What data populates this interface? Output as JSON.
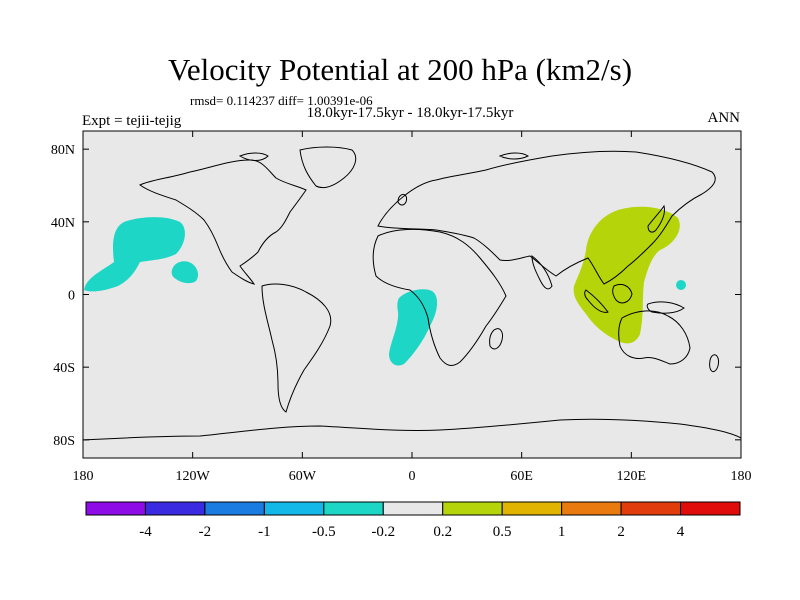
{
  "title": "Velocity Potential at 200 hPa (km2/s)",
  "stats": "rmsd= 0.114237 diff= 1.00391e-06",
  "subtitle": "18.0kyr-17.5kyr - 18.0kyr-17.5kyr",
  "left_string": "Expt = tejii-tejig",
  "right_string": "ANN",
  "map": {
    "lon_range": [
      -180,
      180
    ],
    "lat_range": [
      -90,
      90
    ],
    "lon_ticks": [
      {
        "value": -180,
        "label": "180"
      },
      {
        "value": -120,
        "label": "120W"
      },
      {
        "value": -60,
        "label": "60W"
      },
      {
        "value": 0,
        "label": "0"
      },
      {
        "value": 60,
        "label": "60E"
      },
      {
        "value": 120,
        "label": "120E"
      },
      {
        "value": 180,
        "label": "180"
      }
    ],
    "lat_ticks": [
      {
        "value": 80,
        "label": "80N"
      },
      {
        "value": 40,
        "label": "40N"
      },
      {
        "value": 0,
        "label": "0"
      },
      {
        "value": -40,
        "label": "40S"
      },
      {
        "value": -80,
        "label": "80S"
      }
    ],
    "background_color": "#e8e8e8",
    "regions": [
      {
        "name": "central-pacific-negative",
        "class": "-0.5 to -0.2",
        "color": "#1ed6c6"
      },
      {
        "name": "east-pacific-negative",
        "class": "-0.5 to -0.2",
        "color": "#1ed6c6"
      },
      {
        "name": "south-atlantic-negative",
        "class": "-0.5 to -0.2",
        "color": "#1ed6c6"
      },
      {
        "name": "asia-maritime-positive",
        "class": "0.2 to 0.5",
        "color": "#b5d40a"
      },
      {
        "name": "west-pacific-negative-dot",
        "class": "-0.5 to -0.2",
        "color": "#1ed6c6"
      }
    ]
  },
  "colorbar": {
    "colors": [
      "#8e0ce6",
      "#3a2ae0",
      "#1a7ce0",
      "#14b8e8",
      "#1ed6c6",
      "#e8e8e8",
      "#b5d40a",
      "#e0b400",
      "#e87a10",
      "#e03c0c",
      "#e00c0c"
    ],
    "labels": [
      "-4",
      "-2",
      "-1",
      "-0.5",
      "-0.2",
      "0.2",
      "0.5",
      "1",
      "2",
      "4"
    ]
  }
}
